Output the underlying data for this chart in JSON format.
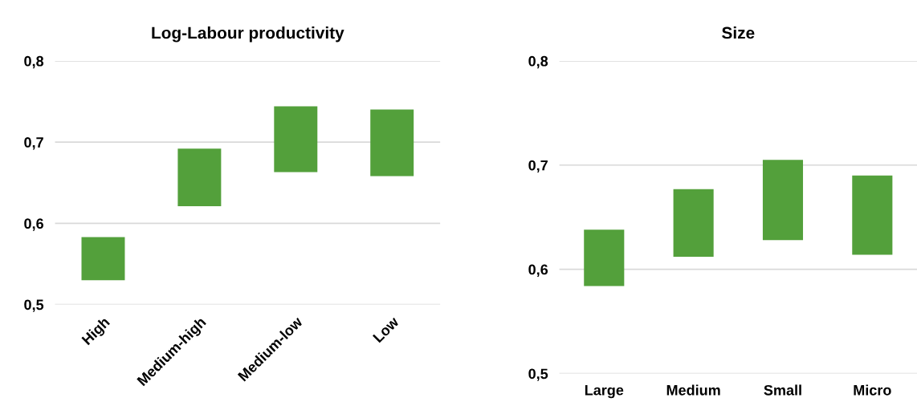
{
  "chart_data": [
    {
      "type": "bar",
      "title": "Log-Labour productivity",
      "categories": [
        "High",
        "Medium-high",
        "Medium-low",
        "Low"
      ],
      "base": [
        0.53,
        0.621,
        0.663,
        0.658
      ],
      "values": [
        0.053,
        0.071,
        0.081,
        0.082
      ],
      "color": "#53a03b",
      "ylim": [
        0.5,
        0.8
      ],
      "yticks": [
        {
          "value": 0.5,
          "label": "0,5"
        },
        {
          "value": 0.6,
          "label": "0,6"
        },
        {
          "value": 0.7,
          "label": "0,7"
        },
        {
          "value": 0.8,
          "label": "0,8"
        }
      ],
      "grid": "y"
    },
    {
      "type": "bar",
      "title": "Size",
      "categories": [
        "Large",
        "Medium",
        "Small",
        "Micro"
      ],
      "base": [
        0.584,
        0.612,
        0.628,
        0.614
      ],
      "values": [
        0.054,
        0.065,
        0.077,
        0.076
      ],
      "color": "#53a03b",
      "ylim": [
        0.5,
        0.8
      ],
      "yticks": [
        {
          "value": 0.5,
          "label": "0,5"
        },
        {
          "value": 0.6,
          "label": "0,6"
        },
        {
          "value": 0.7,
          "label": "0,7"
        },
        {
          "value": 0.8,
          "label": "0,8"
        }
      ],
      "grid": "y"
    }
  ]
}
